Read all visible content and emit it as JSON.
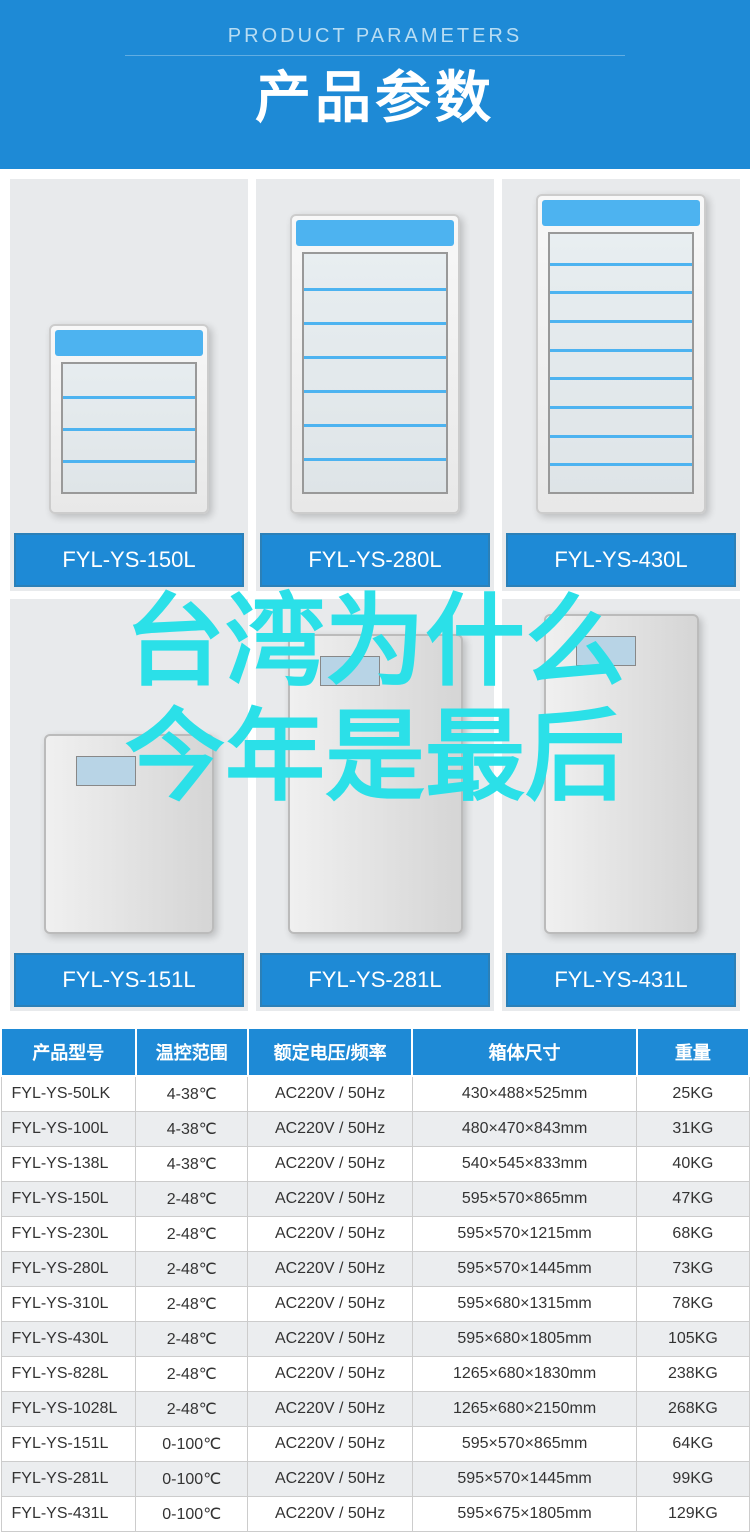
{
  "header": {
    "sub": "PRODUCT PARAMETERS",
    "main": "产品参数"
  },
  "overlay": {
    "line1": "台湾为什么",
    "line2": "今年是最后"
  },
  "products_row1": [
    {
      "label": "FYL-YS-150L",
      "size": "small",
      "shelves": 3
    },
    {
      "label": "FYL-YS-280L",
      "size": "med",
      "shelves": 6
    },
    {
      "label": "FYL-YS-430L",
      "size": "tall",
      "shelves": 8
    }
  ],
  "products_row2": [
    {
      "label": "FYL-YS-151L",
      "size": "small"
    },
    {
      "label": "FYL-YS-281L",
      "size": "med"
    },
    {
      "label": "FYL-YS-431L",
      "size": "tall"
    }
  ],
  "table": {
    "headers": [
      "产品型号",
      "温控范围",
      "额定电压/频率",
      "箱体尺寸",
      "重量"
    ],
    "rows": [
      [
        "FYL-YS-50LK",
        "4-38℃",
        "AC220V / 50Hz",
        "430×488×525mm",
        "25KG"
      ],
      [
        "FYL-YS-100L",
        "4-38℃",
        "AC220V / 50Hz",
        "480×470×843mm",
        "31KG"
      ],
      [
        "FYL-YS-138L",
        "4-38℃",
        "AC220V / 50Hz",
        "540×545×833mm",
        "40KG"
      ],
      [
        "FYL-YS-150L",
        "2-48℃",
        "AC220V / 50Hz",
        "595×570×865mm",
        "47KG"
      ],
      [
        "FYL-YS-230L",
        "2-48℃",
        "AC220V / 50Hz",
        "595×570×1215mm",
        "68KG"
      ],
      [
        "FYL-YS-280L",
        "2-48℃",
        "AC220V / 50Hz",
        "595×570×1445mm",
        "73KG"
      ],
      [
        "FYL-YS-310L",
        "2-48℃",
        "AC220V / 50Hz",
        "595×680×1315mm",
        "78KG"
      ],
      [
        "FYL-YS-430L",
        "2-48℃",
        "AC220V / 50Hz",
        "595×680×1805mm",
        "105KG"
      ],
      [
        "FYL-YS-828L",
        "2-48℃",
        "AC220V / 50Hz",
        "1265×680×1830mm",
        "238KG"
      ],
      [
        "FYL-YS-1028L",
        "2-48℃",
        "AC220V / 50Hz",
        "1265×680×2150mm",
        "268KG"
      ],
      [
        "FYL-YS-151L",
        "0-100℃",
        "AC220V / 50Hz",
        "595×570×865mm",
        "64KG"
      ],
      [
        "FYL-YS-281L",
        "0-100℃",
        "AC220V / 50Hz",
        "595×570×1445mm",
        "99KG"
      ],
      [
        "FYL-YS-431L",
        "0-100℃",
        "AC220V / 50Hz",
        "595×675×1805mm",
        "129KG"
      ]
    ]
  },
  "colors": {
    "brand_blue": "#1e8ad6",
    "accent_blue": "#4db3f0",
    "overlay_cyan": "#2be0e8",
    "cell_bg": "#e8eaec",
    "row_alt": "#ebedef"
  }
}
